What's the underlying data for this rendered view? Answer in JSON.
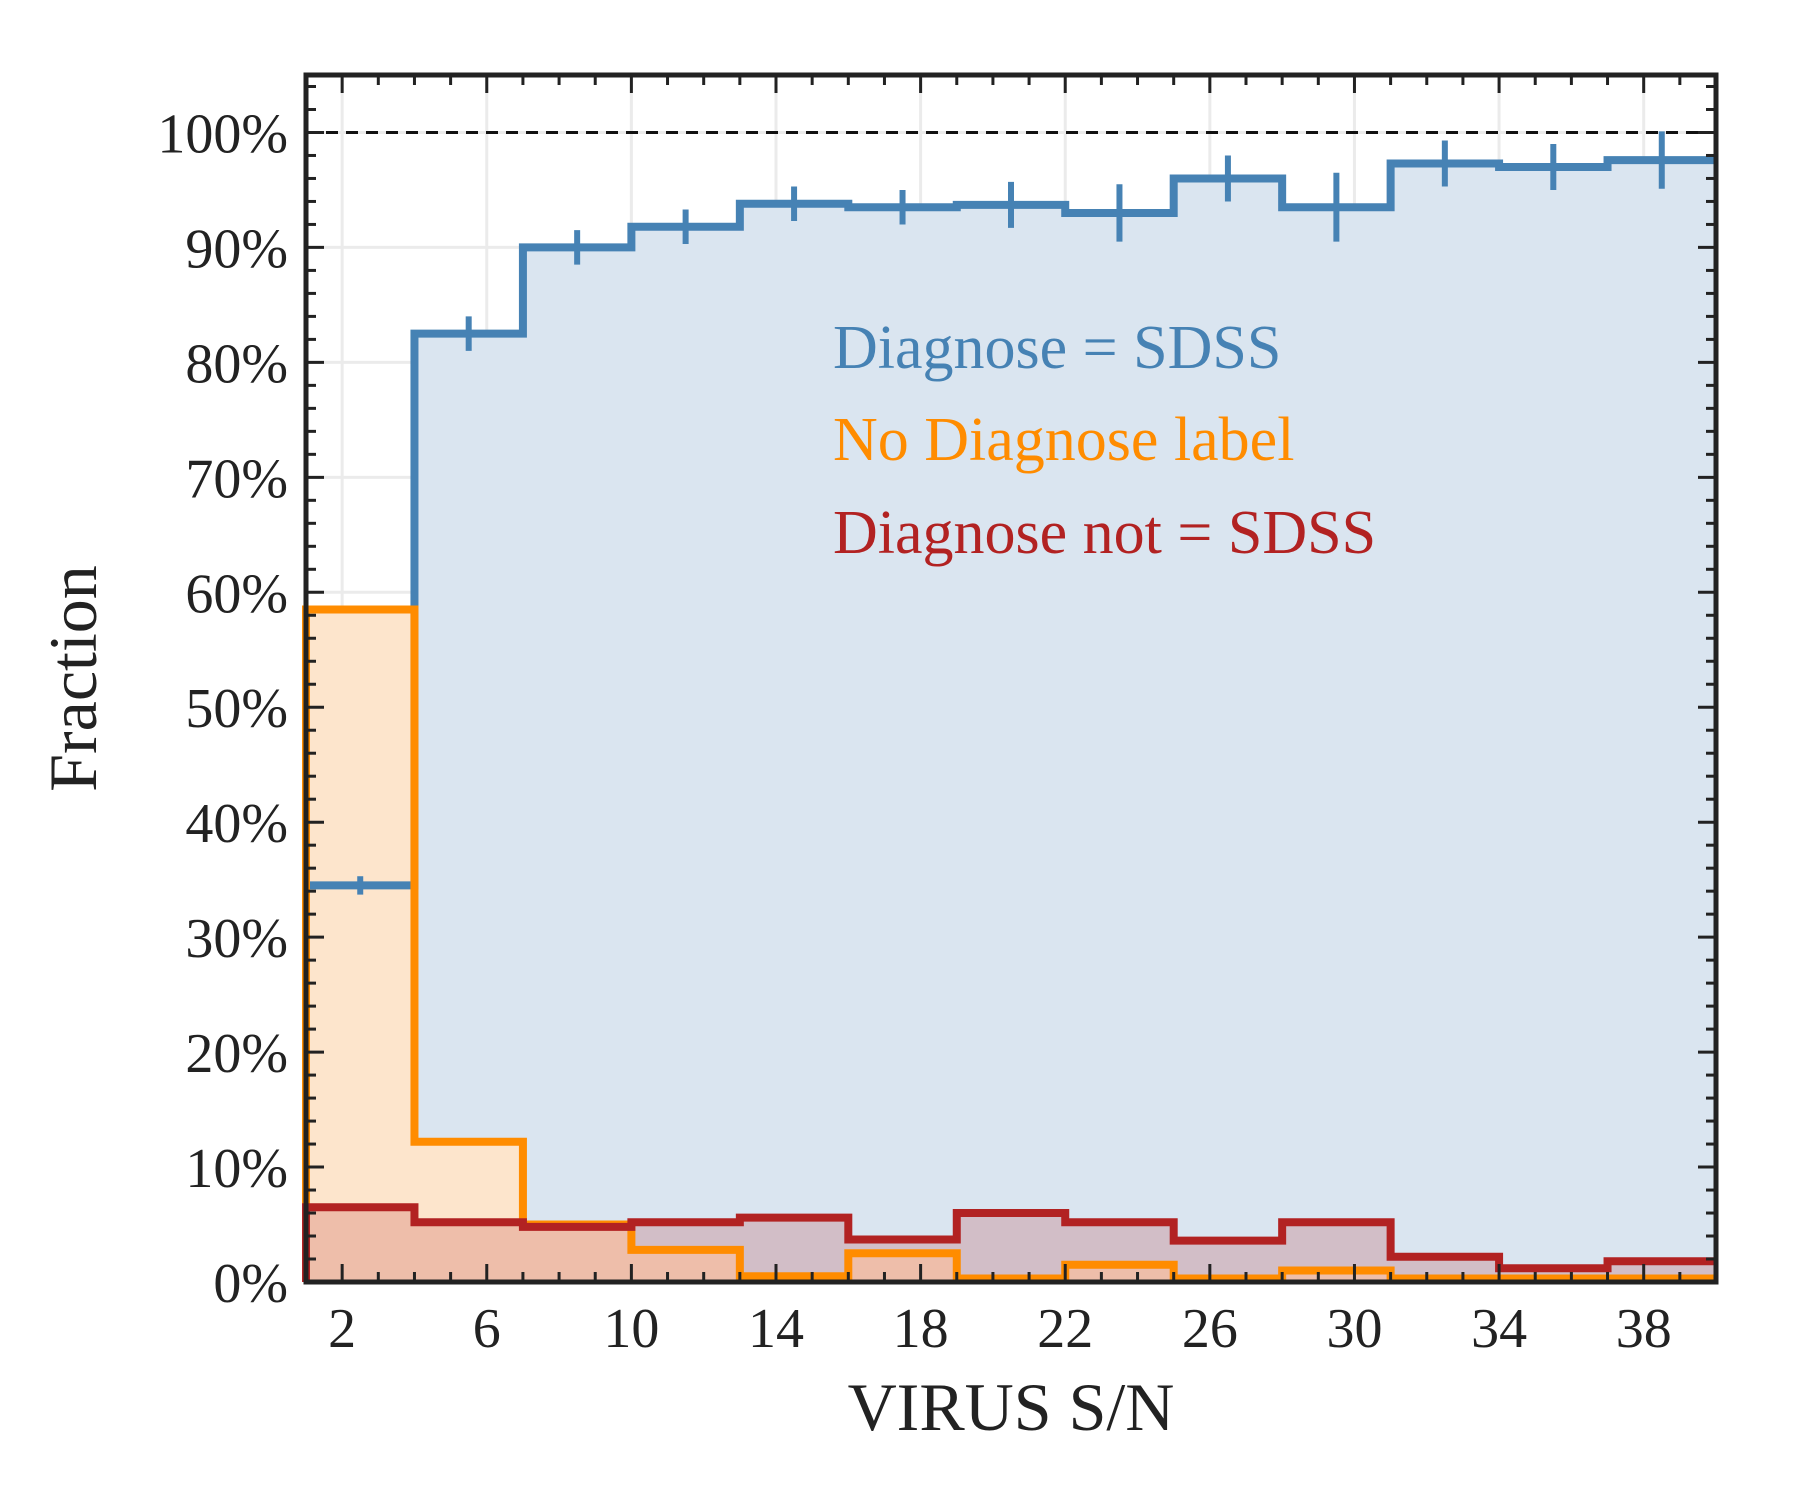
{
  "chart_data": {
    "type": "histogram-step",
    "xlabel": "VIRUS S/N",
    "ylabel": "Fraction",
    "xlim": [
      1,
      40
    ],
    "ylim": [
      0,
      105
    ],
    "x_ticks": [
      2,
      6,
      10,
      14,
      18,
      22,
      26,
      30,
      34,
      38
    ],
    "y_ticks": [
      0,
      10,
      20,
      30,
      40,
      50,
      60,
      70,
      80,
      90,
      100
    ],
    "y_tick_labels": [
      "0%",
      "10%",
      "20%",
      "30%",
      "40%",
      "50%",
      "60%",
      "70%",
      "80%",
      "90%",
      "100%"
    ],
    "reference_line": 100,
    "grid": true,
    "legend_position": "upper-middle",
    "bin_edges": [
      1,
      4,
      7,
      10,
      13,
      16,
      19,
      22,
      25,
      28,
      31,
      34,
      37,
      40
    ],
    "series": [
      {
        "name": "Diagnose = SDSS",
        "color": "#4682b4",
        "fill": "#dae5f0",
        "values": [
          34.5,
          82.5,
          90,
          91.8,
          93.8,
          93.5,
          93.7,
          93,
          96,
          93.5,
          97.3,
          97,
          97.6
        ],
        "errors": [
          0.8,
          1.5,
          1.5,
          1.5,
          1.5,
          1.5,
          2,
          2.5,
          2,
          3,
          2,
          2,
          2.5
        ]
      },
      {
        "name": "No Diagnose label",
        "color": "#ff8c00",
        "fill": "#fde5cc",
        "values": [
          58.5,
          12.2,
          5,
          2.8,
          0.5,
          2.5,
          0.3,
          1.5,
          0.3,
          1,
          0.3,
          0.3,
          0.3
        ]
      },
      {
        "name": "Diagnose not = SDSS",
        "color": "#b22222",
        "fill": "rgba(178,34,34,0.2)",
        "values": [
          6.5,
          5.2,
          4.8,
          5.2,
          5.6,
          3.7,
          6,
          5.2,
          3.6,
          5.2,
          2.2,
          1.2,
          1.8
        ]
      }
    ]
  }
}
